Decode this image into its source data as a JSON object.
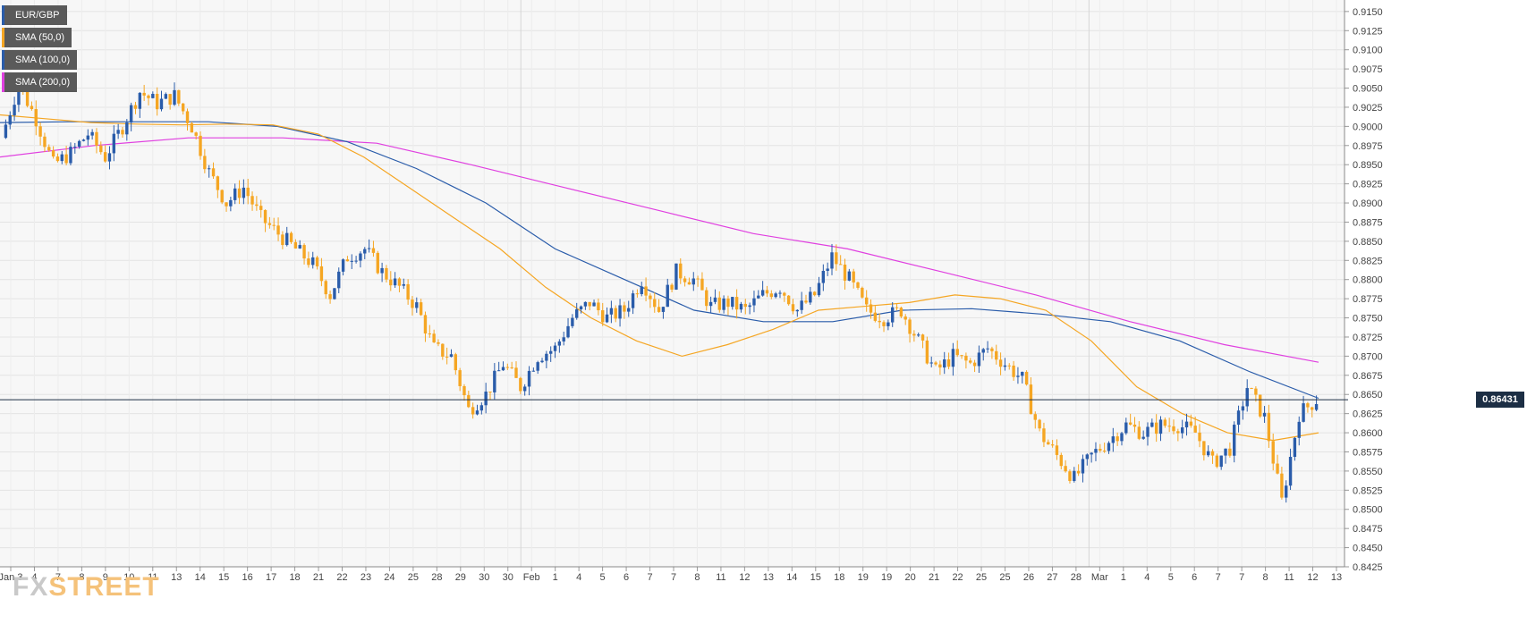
{
  "legend": [
    {
      "label": "EUR/GBP",
      "color": "#2a5caa"
    },
    {
      "label": "SMA (50,0)",
      "color": "#f5a623"
    },
    {
      "label": "SMA (100,0)",
      "color": "#2a5caa"
    },
    {
      "label": "SMA (200,0)",
      "color": "#e040e0"
    }
  ],
  "watermark": {
    "fx": "FX",
    "street": "STREET"
  },
  "current_price_label": "0.86431",
  "chart_data": {
    "type": "candlestick",
    "series_name": "EUR/GBP",
    "ylim": [
      0.8425,
      0.9165
    ],
    "y_ticks": [
      "0.9150",
      "0.9125",
      "0.9100",
      "0.9075",
      "0.9050",
      "0.9025",
      "0.9000",
      "0.8975",
      "0.8950",
      "0.8925",
      "0.8900",
      "0.8875",
      "0.8850",
      "0.8825",
      "0.8800",
      "0.8775",
      "0.8750",
      "0.8725",
      "0.8700",
      "0.8675",
      "0.8650",
      "0.8625",
      "0.8600",
      "0.8575",
      "0.8550",
      "0.8525",
      "0.8500",
      "0.8475",
      "0.8450",
      "0.8425"
    ],
    "x_ticks": [
      "Jan 3",
      "4",
      "7",
      "8",
      "9",
      "10",
      "11",
      "13",
      "14",
      "15",
      "16",
      "17",
      "18",
      "21",
      "22",
      "23",
      "24",
      "25",
      "28",
      "29",
      "30",
      "30",
      "Feb",
      "1",
      "4",
      "5",
      "6",
      "7",
      "7",
      "8",
      "11",
      "12",
      "13",
      "14",
      "15",
      "18",
      "19",
      "19",
      "20",
      "21",
      "22",
      "25",
      "25",
      "26",
      "27",
      "28",
      "Mar",
      "1",
      "4",
      "5",
      "6",
      "7",
      "7",
      "8",
      "11",
      "12",
      "13"
    ],
    "current_price": 0.86431,
    "colors": {
      "up": "#2a5caa",
      "down": "#f5a623",
      "sma50": "#f5a623",
      "sma100": "#2a5caa",
      "sma200": "#e040e0",
      "current_line": "#1c2e44"
    },
    "grid": true,
    "legend_position": "top-left",
    "price_path": [
      0.8985,
      0.9055,
      0.901,
      0.895,
      0.8965,
      0.899,
      0.896,
      0.9,
      0.9045,
      0.903,
      0.904,
      0.9,
      0.894,
      0.89,
      0.892,
      0.888,
      0.886,
      0.884,
      0.882,
      0.878,
      0.883,
      0.884,
      0.881,
      0.879,
      0.8765,
      0.871,
      0.87,
      0.863,
      0.865,
      0.869,
      0.866,
      0.87,
      0.871,
      0.875,
      0.877,
      0.875,
      0.876,
      0.88,
      0.876,
      0.881,
      0.88,
      0.8765,
      0.877,
      0.876,
      0.878,
      0.879,
      0.876,
      0.878,
      0.883,
      0.88,
      0.876,
      0.875,
      0.876,
      0.872,
      0.868,
      0.87,
      0.869,
      0.871,
      0.869,
      0.867,
      0.86,
      0.857,
      0.854,
      0.857,
      0.859,
      0.861,
      0.86,
      0.861,
      0.861,
      0.86,
      0.856,
      0.858,
      0.866,
      0.862,
      0.851,
      0.8625,
      0.86431
    ],
    "sma50": [
      0.9015,
      0.901,
      0.9005,
      0.9003,
      0.9002,
      0.9003,
      0.9002,
      0.899,
      0.896,
      0.892,
      0.888,
      0.884,
      0.879,
      0.875,
      0.872,
      0.87,
      0.8715,
      0.8735,
      0.876,
      0.8765,
      0.877,
      0.878,
      0.8775,
      0.876,
      0.872,
      0.866,
      0.8625,
      0.86,
      0.859,
      0.86
    ],
    "sma100": [
      0.9005,
      0.9006,
      0.9006,
      0.9006,
      0.9,
      0.898,
      0.8945,
      0.89,
      0.884,
      0.88,
      0.876,
      0.8745,
      0.8745,
      0.876,
      0.8762,
      0.8755,
      0.8745,
      0.872,
      0.868,
      0.8645
    ],
    "sma200": [
      0.896,
      0.8975,
      0.8985,
      0.8985,
      0.8978,
      0.895,
      0.892,
      0.889,
      0.886,
      0.884,
      0.881,
      0.878,
      0.8745,
      0.8715,
      0.8692
    ]
  }
}
